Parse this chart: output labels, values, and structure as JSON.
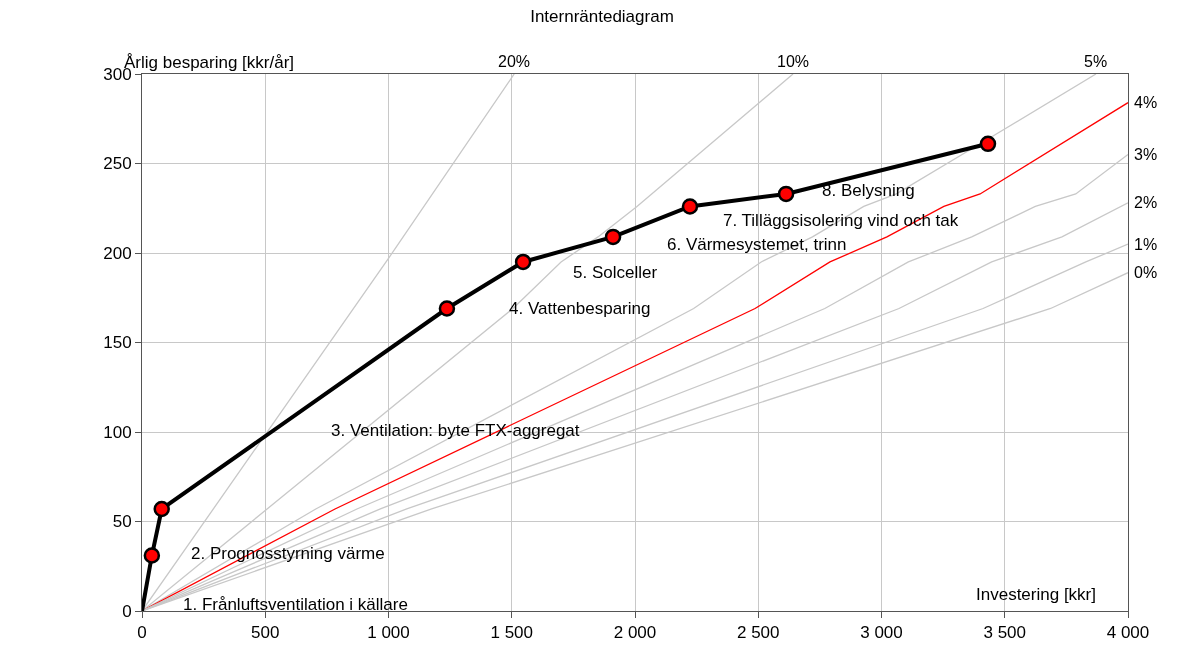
{
  "chart_data": {
    "type": "line",
    "title": "Internräntediagram",
    "xlabel": "Investering [kkr]",
    "ylabel": "Årlig besparing [kkr/år]",
    "xlim": [
      0,
      4000
    ],
    "ylim": [
      0,
      300
    ],
    "xticks": [
      0,
      500,
      {
        "value": 1000,
        "label": "1 000"
      },
      {
        "value": 1500,
        "label": "1 500"
      },
      {
        "value": 2000,
        "label": "2 000"
      },
      {
        "value": 2500,
        "label": "2 500"
      },
      {
        "value": 3000,
        "label": "3 000"
      },
      {
        "value": 3500,
        "label": "3 500"
      },
      {
        "value": 4000,
        "label": "4 000"
      }
    ],
    "yticks": [
      0,
      50,
      100,
      150,
      200,
      250,
      300
    ],
    "grid": true,
    "legend": false,
    "line_style": "solid",
    "series": [
      {
        "name": "20%",
        "color": "#c8c8c8",
        "marker": "none",
        "x": [
          0,
          1000,
          1510
        ],
        "values": [
          0,
          197,
          300
        ]
      },
      {
        "name": "10%",
        "color": "#c8c8c8",
        "marker": "none",
        "x": [
          0,
          1505,
          1700,
          1850,
          2008,
          2641
        ],
        "values": [
          0,
          169,
          195,
          209,
          226,
          300
        ]
      },
      {
        "name": "5%",
        "color": "#c8c8c8",
        "marker": "none",
        "x": [
          0,
          705,
          2238,
          2512,
          2720,
          2928,
          3060,
          3400,
          3870
        ],
        "values": [
          0,
          57,
          169,
          195,
          209,
          226,
          233,
          261,
          300
        ]
      },
      {
        "name": "4%",
        "color": "#ff0000",
        "marker": "none",
        "x": [
          0,
          783,
          2487,
          2791,
          3022,
          3253,
          3400,
          4000
        ],
        "values": [
          0,
          57,
          169,
          195,
          209,
          226,
          233,
          284
        ]
      },
      {
        "name": "3%",
        "color": "#c8c8c8",
        "marker": "none",
        "x": [
          0,
          872,
          2770,
          3109,
          3366,
          3624,
          3788,
          4000
        ],
        "values": [
          0,
          57,
          169,
          195,
          209,
          226,
          233,
          255
        ]
      },
      {
        "name": "2%",
        "color": "#c8c8c8",
        "marker": "none",
        "x": [
          0,
          967,
          3071,
          3447,
          3732,
          4000
        ],
        "values": [
          0,
          57,
          169,
          195,
          209,
          228
        ]
      },
      {
        "name": "1%",
        "color": "#c8c8c8",
        "marker": "none",
        "x": [
          0,
          1074,
          3412,
          3829,
          4000
        ],
        "values": [
          0,
          57,
          169,
          195,
          205
        ]
      },
      {
        "name": "0%",
        "color": "#c8c8c8",
        "marker": "none",
        "x": [
          0,
          1175,
          3686,
          4000
        ],
        "values": [
          0,
          57,
          169,
          189
        ]
      },
      {
        "color": "#000000",
        "marker": "circle",
        "x": [
          0,
          40,
          80,
          1237,
          1546,
          1911,
          2223,
          2613,
          3432
        ],
        "values": [
          0,
          31,
          57,
          169,
          195,
          209,
          226,
          233,
          261
        ],
        "colors": [
          null,
          "#ff0000",
          "#ff0000",
          "#ff0000",
          "#ff0000",
          "#ff0000",
          "#ff0000",
          "#ff0000",
          "#ff0000"
        ]
      }
    ],
    "annotations": [
      "1. Frånluftsventilation i källare",
      "2. Prognosstyrning värme",
      "3. Ventilation: byte FTX-aggregat",
      "4. Vattenbesparing",
      "5. Solceller",
      "6. Värmesystemet, trinn",
      "7. Tilläggsisolering vind och tak",
      "8. Belysning"
    ]
  }
}
